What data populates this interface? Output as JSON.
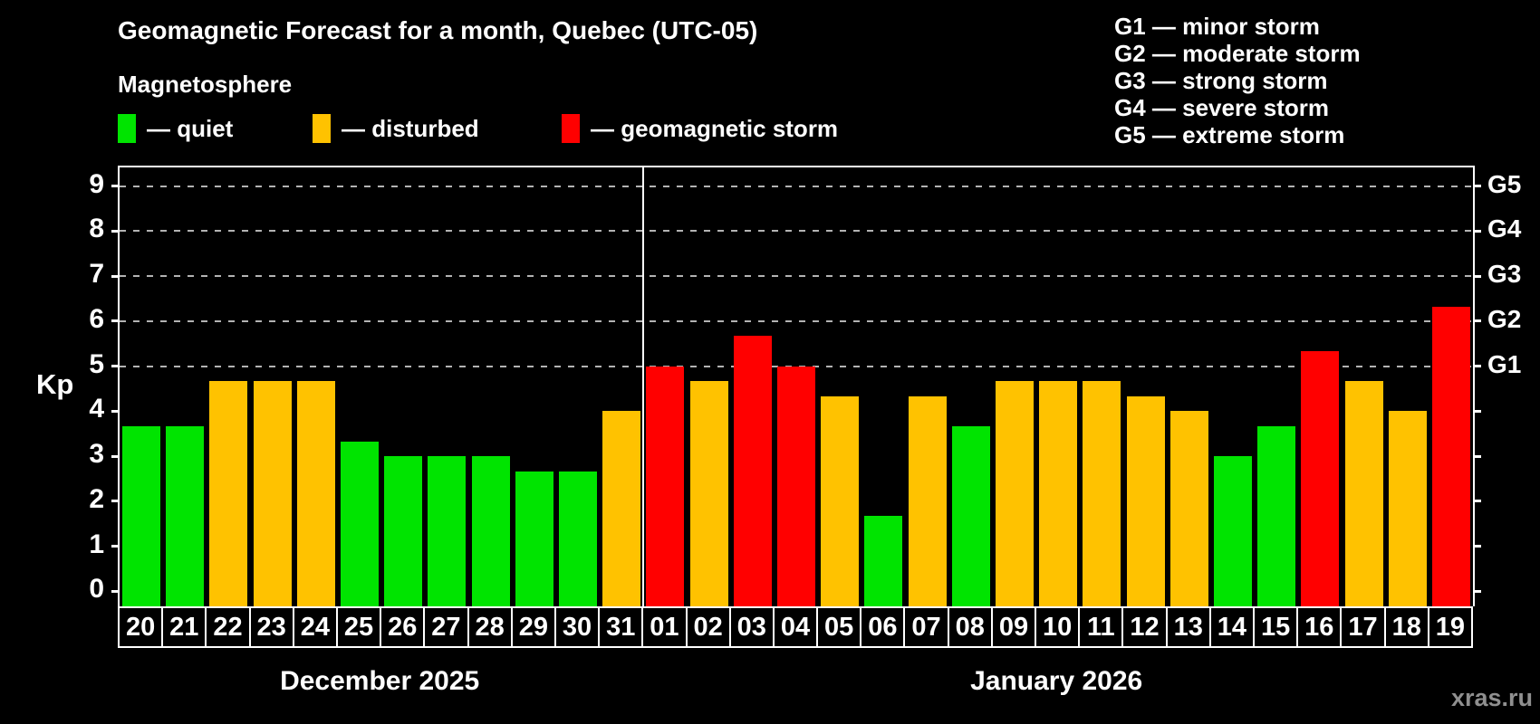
{
  "title": "Geomagnetic Forecast for a month, Quebec (UTC-05)",
  "subtitle": "Magnetosphere",
  "legend": {
    "quiet_label": "— quiet",
    "disturbed_label": "— disturbed",
    "storm_label": "— geomagnetic storm"
  },
  "g_legend": [
    "G1 — minor storm",
    "G2 — moderate storm",
    "G3 — strong storm",
    "G4 — severe storm",
    "G5 — extreme storm"
  ],
  "colors": {
    "quiet": "#00e400",
    "disturbed": "#ffc200",
    "storm": "#ff0000",
    "grid": "#b3b3b3",
    "axis": "#ffffff",
    "watermark": "#8f8f8f",
    "background": "#000000"
  },
  "y_axis": {
    "label": "Kp",
    "tick_values": [
      0,
      1,
      2,
      3,
      4,
      5,
      6,
      7,
      8,
      9
    ],
    "min": 0,
    "max": 9
  },
  "right_axis": {
    "labels": [
      {
        "text": "G1",
        "value": 5
      },
      {
        "text": "G2",
        "value": 6
      },
      {
        "text": "G3",
        "value": 7
      },
      {
        "text": "G4",
        "value": 8
      },
      {
        "text": "G5",
        "value": 9
      }
    ],
    "tick_values": [
      0,
      1,
      2,
      3,
      4,
      5,
      6,
      7,
      8,
      9
    ]
  },
  "watermark": "xras.ru",
  "chart_data": {
    "type": "bar",
    "title": "Geomagnetic Forecast for a month, Quebec (UTC-05)",
    "ylabel": "Kp",
    "ylim": [
      0,
      9
    ],
    "grid": "dashed horizontal lines at Kp 5-9 only",
    "legend_position": "top-left",
    "months": [
      {
        "label": "December 2025",
        "days": [
          {
            "day": "20",
            "value": 3.67,
            "status": "quiet"
          },
          {
            "day": "21",
            "value": 3.67,
            "status": "quiet"
          },
          {
            "day": "22",
            "value": 4.67,
            "status": "disturbed"
          },
          {
            "day": "23",
            "value": 4.67,
            "status": "disturbed"
          },
          {
            "day": "24",
            "value": 4.67,
            "status": "disturbed"
          },
          {
            "day": "25",
            "value": 3.33,
            "status": "quiet"
          },
          {
            "day": "26",
            "value": 3.0,
            "status": "quiet"
          },
          {
            "day": "27",
            "value": 3.0,
            "status": "quiet"
          },
          {
            "day": "28",
            "value": 3.0,
            "status": "quiet"
          },
          {
            "day": "29",
            "value": 2.67,
            "status": "quiet"
          },
          {
            "day": "30",
            "value": 2.67,
            "status": "quiet"
          },
          {
            "day": "31",
            "value": 4.0,
            "status": "disturbed"
          }
        ]
      },
      {
        "label": "January 2026",
        "days": [
          {
            "day": "01",
            "value": 5.0,
            "status": "storm"
          },
          {
            "day": "02",
            "value": 4.67,
            "status": "disturbed"
          },
          {
            "day": "03",
            "value": 5.67,
            "status": "storm"
          },
          {
            "day": "04",
            "value": 5.0,
            "status": "storm"
          },
          {
            "day": "05",
            "value": 4.33,
            "status": "disturbed"
          },
          {
            "day": "06",
            "value": 1.67,
            "status": "quiet"
          },
          {
            "day": "07",
            "value": 4.33,
            "status": "disturbed"
          },
          {
            "day": "08",
            "value": 3.67,
            "status": "quiet"
          },
          {
            "day": "09",
            "value": 4.67,
            "status": "disturbed"
          },
          {
            "day": "10",
            "value": 4.67,
            "status": "disturbed"
          },
          {
            "day": "11",
            "value": 4.67,
            "status": "disturbed"
          },
          {
            "day": "12",
            "value": 4.33,
            "status": "disturbed"
          },
          {
            "day": "13",
            "value": 4.0,
            "status": "disturbed"
          },
          {
            "day": "14",
            "value": 3.0,
            "status": "quiet"
          },
          {
            "day": "15",
            "value": 3.67,
            "status": "quiet"
          },
          {
            "day": "16",
            "value": 5.33,
            "status": "storm"
          },
          {
            "day": "17",
            "value": 4.67,
            "status": "disturbed"
          },
          {
            "day": "18",
            "value": 4.0,
            "status": "disturbed"
          },
          {
            "day": "19",
            "value": 6.33,
            "status": "storm"
          }
        ]
      }
    ]
  }
}
